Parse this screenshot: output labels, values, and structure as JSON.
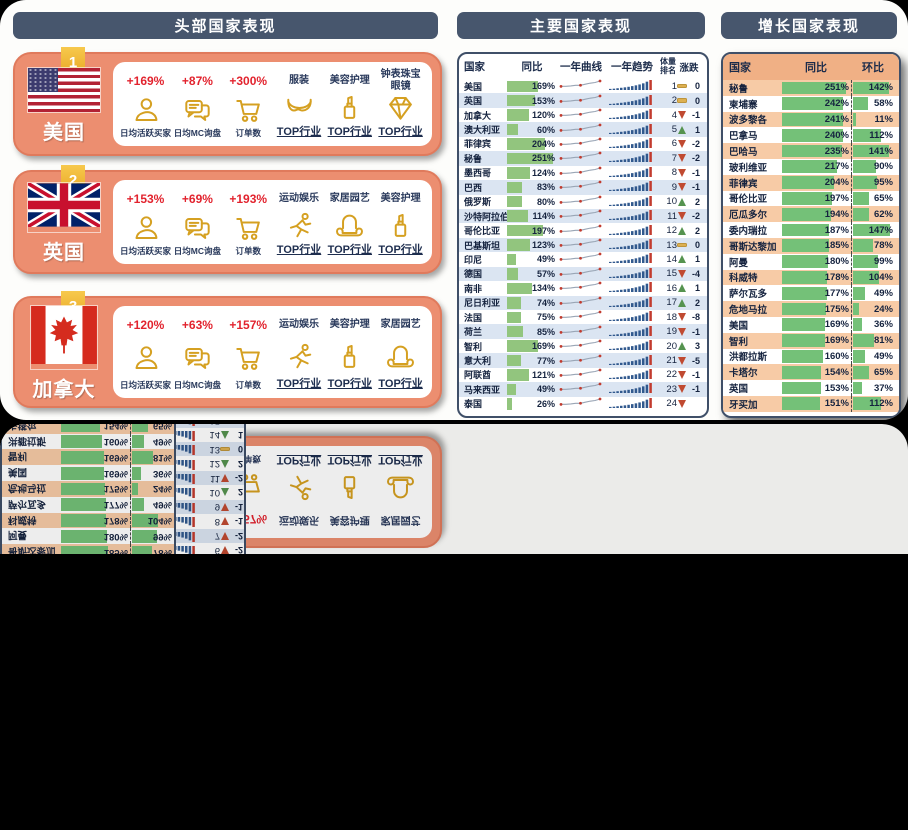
{
  "colors": {
    "title_bar": "#47566d",
    "card_salmon": "#ec8e70",
    "stat_red": "#e2232e",
    "icon_gold": "#d5a021",
    "bar_green": "#8ec57e",
    "row_blue": "#dbe5f2",
    "row_peach": "#f7cba6",
    "header_peach": "#f0b085",
    "trend_navy": "#31598e",
    "trend_red": "#c23b2e",
    "up_green": "#55934f",
    "down_red": "#c04a31",
    "flat_tan": "#ddb051"
  },
  "panels": {
    "top": {
      "title": "头部国家表现",
      "cards": [
        {
          "rank": "1",
          "country": "美国",
          "flag": "us",
          "stats": [
            {
              "value": "+169%",
              "label": "日均活跃买家",
              "icon": "buyer-icon"
            },
            {
              "value": "+87%",
              "label": "日均MC询盘",
              "icon": "inquiry-icon"
            },
            {
              "value": "+300%",
              "label": "订单数",
              "icon": "orders-icon"
            }
          ],
          "industries": [
            {
              "name": "服装",
              "label": "TOP行业",
              "icon": "apparel-icon"
            },
            {
              "name": "美容护理",
              "label": "TOP行业",
              "icon": "lipstick-icon"
            },
            {
              "name": "钟表珠宝眼镜",
              "label": "TOP行业",
              "icon": "diamond-icon"
            }
          ]
        },
        {
          "rank": "2",
          "country": "英国",
          "flag": "uk",
          "stats": [
            {
              "value": "+153%",
              "label": "日均活跃买家",
              "icon": "buyer-icon"
            },
            {
              "value": "+69%",
              "label": "日均MC询盘",
              "icon": "inquiry-icon"
            },
            {
              "value": "+193%",
              "label": "订单数",
              "icon": "orders-icon"
            }
          ],
          "industries": [
            {
              "name": "运动娱乐",
              "label": "TOP行业",
              "icon": "runner-icon"
            },
            {
              "name": "家居园艺",
              "label": "TOP行业",
              "icon": "armchair-icon"
            },
            {
              "name": "美容护理",
              "label": "TOP行业",
              "icon": "lipstick-icon"
            }
          ]
        },
        {
          "rank": "3",
          "country": "加拿大",
          "flag": "ca",
          "stats": [
            {
              "value": "+120%",
              "label": "日均活跃买家",
              "icon": "buyer-icon"
            },
            {
              "value": "+63%",
              "label": "日均MC询盘",
              "icon": "inquiry-icon"
            },
            {
              "value": "+157%",
              "label": "订单数",
              "icon": "orders-icon"
            }
          ],
          "industries": [
            {
              "name": "运动娱乐",
              "label": "TOP行业",
              "icon": "runner-icon"
            },
            {
              "name": "美容护理",
              "label": "TOP行业",
              "icon": "lipstick-icon"
            },
            {
              "name": "家居园艺",
              "label": "TOP行业",
              "icon": "armchair-icon"
            }
          ]
        }
      ]
    },
    "major": {
      "title": "主要国家表现",
      "columns": {
        "country": "国家",
        "yoy": "同比",
        "curve": "一年曲线",
        "trend": "一年趋势",
        "rank": "体量排名",
        "change": "涨跌"
      }
    },
    "growth": {
      "title": "增长国家表现",
      "columns": {
        "country": "国家",
        "yoy": "同比",
        "mom": "环比"
      }
    }
  },
  "chart_data": [
    {
      "type": "table",
      "title": "主要国家表现",
      "columns": [
        "国家",
        "同比",
        "一年曲线",
        "一年趋势",
        "体量排名",
        "涨跌"
      ],
      "yoy_axis_max": 260,
      "curve_pattern": [
        2,
        2,
        2.4,
        3,
        3,
        4,
        5,
        5.6,
        7
      ],
      "trend_pattern": [
        1,
        1.2,
        1.6,
        2,
        2.4,
        2.9,
        3.5,
        4.2,
        5,
        6,
        7.5,
        9
      ],
      "rows": [
        {
          "country": "美国",
          "yoy_pct": 169,
          "volume_rank": 1,
          "change": "0",
          "dir": "flat"
        },
        {
          "country": "英国",
          "yoy_pct": 153,
          "volume_rank": 2,
          "change": "0",
          "dir": "flat"
        },
        {
          "country": "加拿大",
          "yoy_pct": 120,
          "volume_rank": 4,
          "change": "-1",
          "dir": "down"
        },
        {
          "country": "澳大利亚",
          "yoy_pct": 60,
          "volume_rank": 5,
          "change": "1",
          "dir": "up"
        },
        {
          "country": "菲律宾",
          "yoy_pct": 204,
          "volume_rank": 6,
          "change": "-2",
          "dir": "down"
        },
        {
          "country": "秘鲁",
          "yoy_pct": 251,
          "volume_rank": 7,
          "change": "-2",
          "dir": "down"
        },
        {
          "country": "墨西哥",
          "yoy_pct": 124,
          "volume_rank": 8,
          "change": "-1",
          "dir": "down"
        },
        {
          "country": "巴西",
          "yoy_pct": 83,
          "volume_rank": 9,
          "change": "-1",
          "dir": "down"
        },
        {
          "country": "俄罗斯",
          "yoy_pct": 80,
          "volume_rank": 10,
          "change": "2",
          "dir": "up"
        },
        {
          "country": "沙特阿拉伯",
          "yoy_pct": 114,
          "volume_rank": 11,
          "change": "-2",
          "dir": "down"
        },
        {
          "country": "哥伦比亚",
          "yoy_pct": 197,
          "volume_rank": 12,
          "change": "2",
          "dir": "up"
        },
        {
          "country": "巴基斯坦",
          "yoy_pct": 123,
          "volume_rank": 13,
          "change": "0",
          "dir": "flat"
        },
        {
          "country": "印尼",
          "yoy_pct": 49,
          "volume_rank": 14,
          "change": "1",
          "dir": "up"
        },
        {
          "country": "德国",
          "yoy_pct": 57,
          "volume_rank": 15,
          "change": "-4",
          "dir": "down"
        },
        {
          "country": "南非",
          "yoy_pct": 134,
          "volume_rank": 16,
          "change": "1",
          "dir": "up"
        },
        {
          "country": "尼日利亚",
          "yoy_pct": 74,
          "volume_rank": 17,
          "change": "2",
          "dir": "up"
        },
        {
          "country": "法国",
          "yoy_pct": 75,
          "volume_rank": 18,
          "change": "-8",
          "dir": "down"
        },
        {
          "country": "荷兰",
          "yoy_pct": 85,
          "volume_rank": 19,
          "change": "-1",
          "dir": "down"
        },
        {
          "country": "智利",
          "yoy_pct": 169,
          "volume_rank": 20,
          "change": "3",
          "dir": "up"
        },
        {
          "country": "意大利",
          "yoy_pct": 77,
          "volume_rank": 21,
          "change": "-5",
          "dir": "down"
        },
        {
          "country": "阿联酋",
          "yoy_pct": 121,
          "volume_rank": 22,
          "change": "-1",
          "dir": "down"
        },
        {
          "country": "马来西亚",
          "yoy_pct": 49,
          "volume_rank": 23,
          "change": "-1",
          "dir": "down"
        },
        {
          "country": "泰国",
          "yoy_pct": 26,
          "volume_rank": 24,
          "change": "",
          "dir": "down"
        }
      ]
    },
    {
      "type": "bar",
      "title": "增长国家表现",
      "axis_max": {
        "yoy": 260,
        "mom": 150
      },
      "categories": [
        "秘鲁",
        "柬埔寨",
        "波多黎各",
        "巴拿马",
        "巴哈马",
        "玻利维亚",
        "菲律宾",
        "哥伦比亚",
        "厄瓜多尔",
        "委内瑞拉",
        "哥斯达黎加",
        "阿曼",
        "科威特",
        "萨尔瓦多",
        "危地马拉",
        "美国",
        "智利",
        "洪都拉斯",
        "卡塔尔",
        "英国",
        "牙买加"
      ],
      "series": [
        {
          "name": "同比",
          "values": [
            251,
            242,
            241,
            240,
            235,
            217,
            204,
            197,
            194,
            187,
            185,
            180,
            178,
            177,
            175,
            169,
            169,
            160,
            154,
            153,
            151
          ]
        },
        {
          "name": "环比",
          "values": [
            142,
            58,
            11,
            112,
            141,
            90,
            95,
            65,
            62,
            147,
            78,
            99,
            104,
            49,
            24,
            36,
            81,
            49,
            65,
            37,
            112
          ]
        }
      ]
    }
  ]
}
